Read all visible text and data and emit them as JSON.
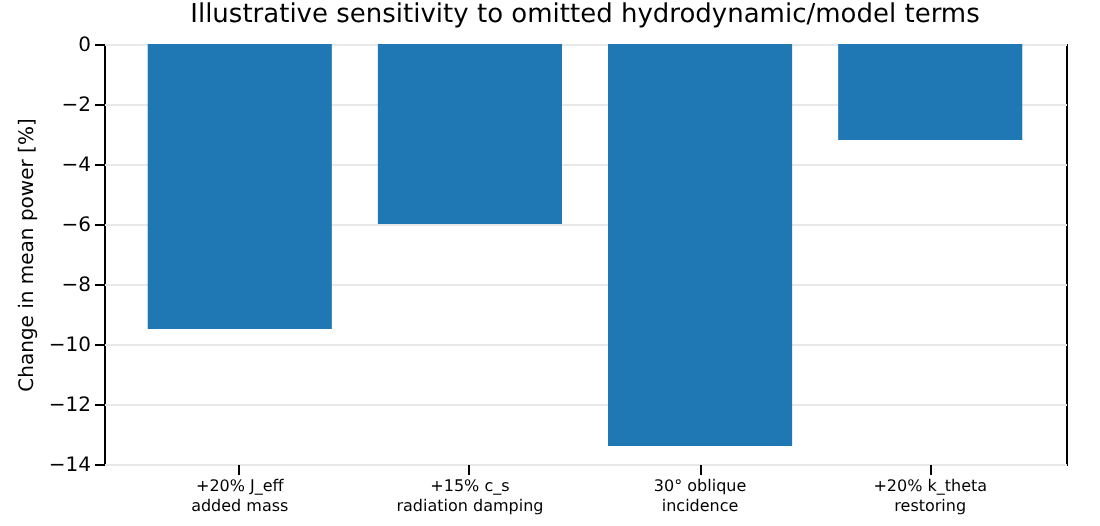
{
  "chart_data": {
    "type": "bar",
    "title": "Illustrative sensitivity to omitted hydrodynamic/model terms",
    "ylabel": "Change in mean power [%]",
    "categories": [
      "+20% J_eff\nadded mass",
      "+15% c_s\nradiation damping",
      "30° oblique\nincidence",
      "+20% k_theta\nrestoring"
    ],
    "values": [
      -9.5,
      -6.0,
      -13.4,
      -3.2
    ],
    "color": "#1f77b4",
    "ylim": [
      -14,
      0
    ],
    "yticks": [
      -14,
      -12,
      -10,
      -8,
      -6,
      -4,
      -2,
      0
    ],
    "grid": "y"
  }
}
